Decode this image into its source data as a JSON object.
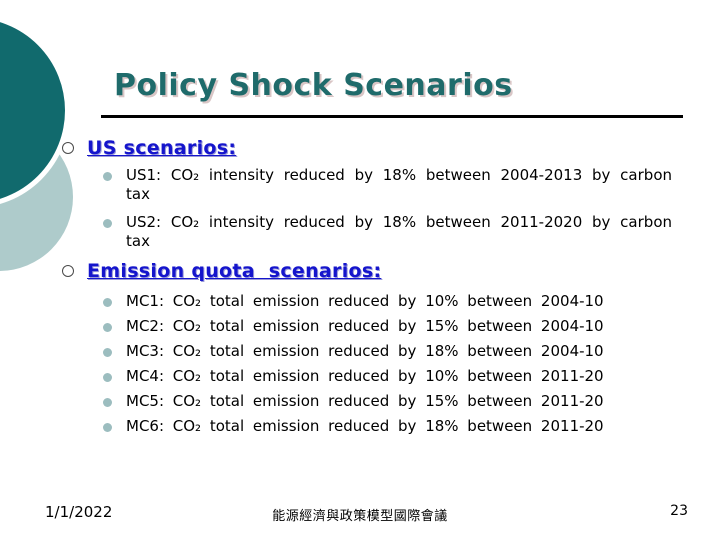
{
  "slide": {
    "title": "Policy Shock Scenarios",
    "sections": [
      {
        "heading": "US scenarios:",
        "items": [
          {
            "text": "US1: CO₂ intensity reduced by 18% between 2004-2013 by carbon tax"
          },
          {
            "text": "US2: CO₂ intensity reduced by 18% between 2011-2020 by carbon tax"
          }
        ]
      },
      {
        "heading": "Emission quota  scenarios:",
        "items": [
          {
            "text": "MC1: CO₂ total emission reduced by 10% between 2004-10"
          },
          {
            "text": "MC2: CO₂ total emission reduced by 15% between 2004-10"
          },
          {
            "text": "MC3: CO₂ total emission reduced by 18% between 2004-10"
          },
          {
            "text": "MC4: CO₂ total emission reduced by 10% between 2011-20"
          },
          {
            "text": "MC5: CO₂ total emission reduced by 15% between 2011-20"
          },
          {
            "text": "MC6: CO₂ total emission reduced by 18% between 2011-20"
          }
        ]
      }
    ],
    "footer": {
      "date": "1/1/2022",
      "conference": "能源經濟與政策模型國際會議",
      "page_number": "23"
    },
    "colors": {
      "title_teal": "#1F6B6B",
      "heading_blue": "#1515CC",
      "dark_circle": "#116A6D",
      "light_circle": "#AECBCB",
      "bullet_dot": "#9CBDBF"
    }
  }
}
